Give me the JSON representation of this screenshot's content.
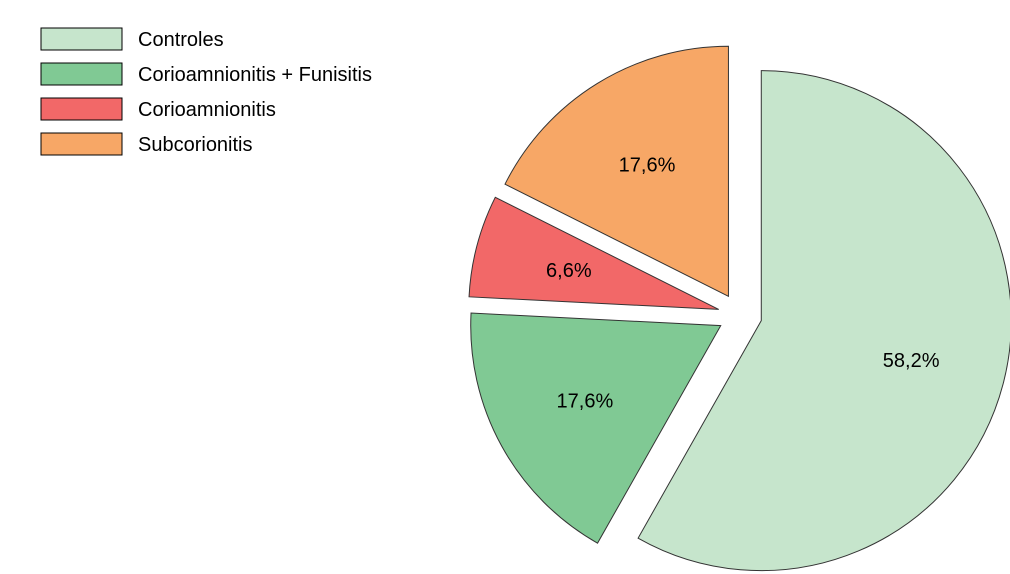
{
  "chart_data": {
    "type": "pie",
    "title": "",
    "legend_position": "top-left",
    "exploded": true,
    "slices": [
      {
        "label": "Controles",
        "value": 58.2,
        "value_label": "58,2%",
        "color": "#c6e5cc"
      },
      {
        "label": "Corioamnionitis + Funisitis",
        "value": 17.6,
        "value_label": "17,6%",
        "color": "#80c994"
      },
      {
        "label": "Corioamnionitis",
        "value": 6.6,
        "value_label": "6,6%",
        "color": "#f26868"
      },
      {
        "label": "Subcorionitis",
        "value": 17.6,
        "value_label": "17,6%",
        "color": "#f7a766"
      }
    ]
  }
}
